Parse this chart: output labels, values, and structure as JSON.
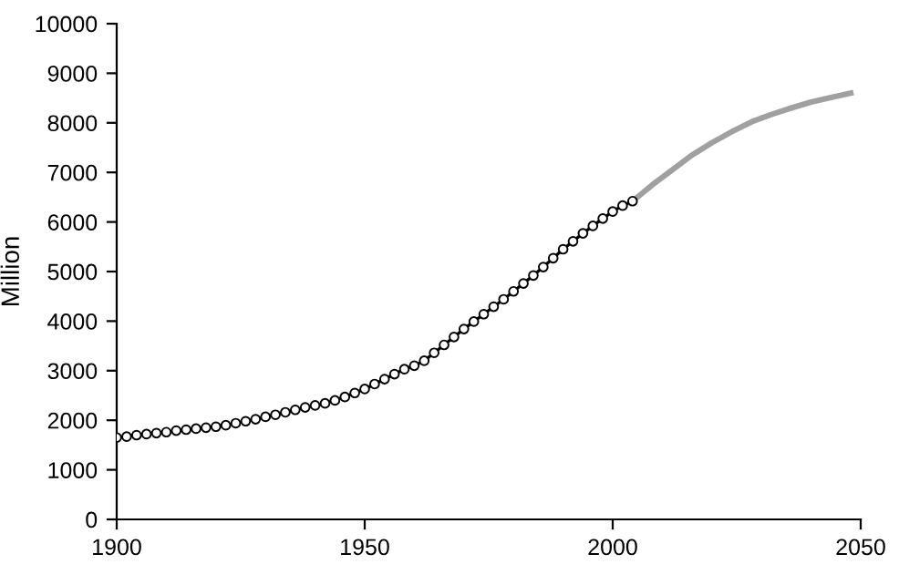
{
  "chart_data": {
    "type": "line",
    "ylabel": "Million",
    "xlim": [
      1900,
      2050
    ],
    "xticks": [
      1900,
      1950,
      2000,
      2050
    ],
    "ylim": [
      0,
      10000
    ],
    "yticks": [
      0,
      1000,
      2000,
      3000,
      4000,
      5000,
      6000,
      7000,
      8000,
      9000,
      10000
    ],
    "grid": false,
    "legend": false,
    "series": [
      {
        "color": "#000000",
        "marker": "circle",
        "x": [
          1900,
          1902,
          1904,
          1906,
          1908,
          1910,
          1912,
          1914,
          1916,
          1918,
          1920,
          1922,
          1924,
          1926,
          1928,
          1930,
          1932,
          1934,
          1936,
          1938,
          1940,
          1942,
          1944,
          1946,
          1948,
          1950,
          1952,
          1954,
          1956,
          1958,
          1960,
          1962,
          1964,
          1966,
          1968,
          1970,
          1972,
          1974,
          1976,
          1978,
          1980,
          1982,
          1984,
          1986,
          1988,
          1990,
          1992,
          1994,
          1996,
          1998,
          2000,
          2002,
          2004
        ],
        "values": [
          1650,
          1670,
          1700,
          1720,
          1740,
          1760,
          1790,
          1810,
          1830,
          1850,
          1870,
          1900,
          1940,
          1980,
          2020,
          2070,
          2110,
          2160,
          2210,
          2260,
          2300,
          2340,
          2400,
          2470,
          2550,
          2630,
          2730,
          2830,
          2930,
          3030,
          3100,
          3200,
          3360,
          3520,
          3680,
          3840,
          3990,
          4140,
          4290,
          4440,
          4600,
          4760,
          4920,
          5090,
          5270,
          5450,
          5610,
          5770,
          5920,
          6070,
          6210,
          6330,
          6420
        ]
      },
      {
        "color": "#a0a0a0",
        "marker": "none",
        "x": [
          2004,
          2008,
          2012,
          2016,
          2020,
          2024,
          2028,
          2032,
          2036,
          2040,
          2044,
          2048
        ],
        "values": [
          6420,
          6750,
          7050,
          7350,
          7600,
          7820,
          8020,
          8170,
          8300,
          8420,
          8510,
          8600
        ]
      }
    ]
  }
}
